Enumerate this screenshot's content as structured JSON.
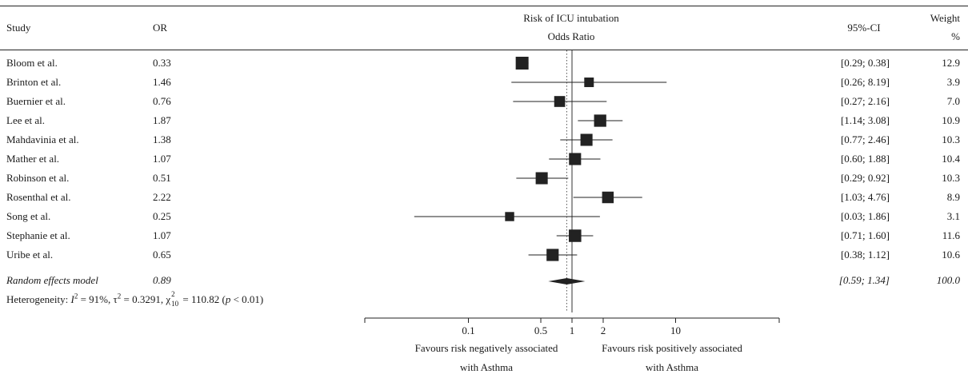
{
  "header": {
    "study": "Study",
    "or": "OR",
    "title_line1": "Risk of ICU intubation",
    "title_line2": "Odds Ratio",
    "ci": "95%-CI",
    "weight_line1": "Weight",
    "weight_line2": "%"
  },
  "studies": [
    {
      "name": "Bloom et al.",
      "or": "0.33",
      "ci": "[0.29; 0.38]",
      "weight": "12.9"
    },
    {
      "name": "Brinton et al.",
      "or": "1.46",
      "ci": "[0.26; 8.19]",
      "weight": "3.9"
    },
    {
      "name": "Buernier et al.",
      "or": "0.76",
      "ci": "[0.27; 2.16]",
      "weight": "7.0"
    },
    {
      "name": "Lee et al.",
      "or": "1.87",
      "ci": "[1.14; 3.08]",
      "weight": "10.9"
    },
    {
      "name": "Mahdavinia et al.",
      "or": "1.38",
      "ci": "[0.77; 2.46]",
      "weight": "10.3"
    },
    {
      "name": "Mather et al.",
      "or": "1.07",
      "ci": "[0.60; 1.88]",
      "weight": "10.4"
    },
    {
      "name": "Robinson et al.",
      "or": "0.51",
      "ci": "[0.29; 0.92]",
      "weight": "10.3"
    },
    {
      "name": "Rosenthal et al.",
      "or": "2.22",
      "ci": "[1.03; 4.76]",
      "weight": "8.9"
    },
    {
      "name": "Song et al.",
      "or": "0.25",
      "ci": "[0.03; 1.86]",
      "weight": "3.1"
    },
    {
      "name": "Stephanie et al.",
      "or": "1.07",
      "ci": "[0.71; 1.60]",
      "weight": "11.6"
    },
    {
      "name": "Uribe et al.",
      "or": "0.65",
      "ci": "[0.38; 1.12]",
      "weight": "10.6"
    }
  ],
  "summary": {
    "name": "Random effects model",
    "or": "0.89",
    "ci": "[0.59; 1.34]",
    "weight": "100.0"
  },
  "heterogeneity": {
    "prefix": "Heterogeneity: ",
    "i2_symbol": "I",
    "i2_sup": "2",
    "i2_value": " = 91%, ",
    "tau_symbol": "τ",
    "tau_sup": "2",
    "tau_value": " = 0.3291, ",
    "chi_symbol": "χ",
    "chi_sup": "2",
    "chi_sub": "10",
    "chi_value": " = 110.82 (",
    "p_symbol": "p",
    "p_value": " < 0.01)"
  },
  "axis": {
    "tick_labels": [
      "0.1",
      "0.5",
      "1",
      "2",
      "10"
    ],
    "left_label_line1": "Favours risk negatively associated",
    "left_label_line2": "with Asthma",
    "right_label_line1": "Favours risk positively associated",
    "right_label_line2": "with Asthma"
  },
  "chart_data": {
    "type": "forest",
    "title": "Risk of ICU intubation",
    "xlabel": "Odds Ratio",
    "x_scale": "log",
    "xlim": [
      0.01,
      100
    ],
    "ticks": [
      0.1,
      0.5,
      1,
      2,
      10
    ],
    "reference_line": 1,
    "summary_line": 0.89,
    "points": [
      {
        "study": "Bloom et al.",
        "or": 0.33,
        "lower": 0.29,
        "upper": 0.38,
        "weight": 12.9
      },
      {
        "study": "Brinton et al.",
        "or": 1.46,
        "lower": 0.26,
        "upper": 8.19,
        "weight": 3.9
      },
      {
        "study": "Buernier et al.",
        "or": 0.76,
        "lower": 0.27,
        "upper": 2.16,
        "weight": 7.0
      },
      {
        "study": "Lee et al.",
        "or": 1.87,
        "lower": 1.14,
        "upper": 3.08,
        "weight": 10.9
      },
      {
        "study": "Mahdavinia et al.",
        "or": 1.38,
        "lower": 0.77,
        "upper": 2.46,
        "weight": 10.3
      },
      {
        "study": "Mather et al.",
        "or": 1.07,
        "lower": 0.6,
        "upper": 1.88,
        "weight": 10.4
      },
      {
        "study": "Robinson et al.",
        "or": 0.51,
        "lower": 0.29,
        "upper": 0.92,
        "weight": 10.3
      },
      {
        "study": "Rosenthal et al.",
        "or": 2.22,
        "lower": 1.03,
        "upper": 4.76,
        "weight": 8.9
      },
      {
        "study": "Song et al.",
        "or": 0.25,
        "lower": 0.03,
        "upper": 1.86,
        "weight": 3.1
      },
      {
        "study": "Stephanie et al.",
        "or": 1.07,
        "lower": 0.71,
        "upper": 1.6,
        "weight": 11.6
      },
      {
        "study": "Uribe et al.",
        "or": 0.65,
        "lower": 0.38,
        "upper": 1.12,
        "weight": 10.6
      }
    ],
    "summary": {
      "label": "Random effects model",
      "or": 0.89,
      "lower": 0.59,
      "upper": 1.34,
      "weight": 100.0
    }
  }
}
